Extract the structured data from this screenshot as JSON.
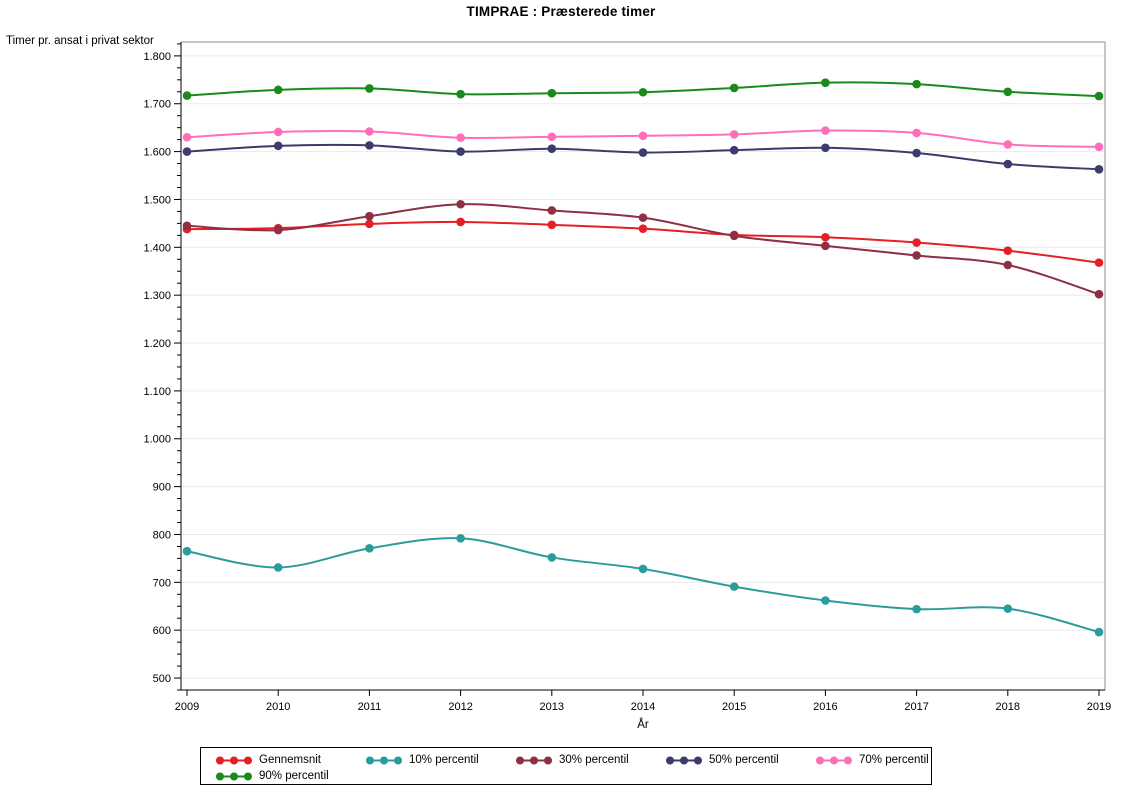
{
  "chart_data": {
    "type": "line",
    "title": "TIMPRAE : Præsterede timer",
    "xlabel": "År",
    "ylabel": "Timer pr. ansat i privat sektor",
    "x_labels": [
      "2009",
      "2010",
      "2011",
      "2012",
      "2013",
      "2014",
      "2015",
      "2016",
      "2017",
      "2018",
      "2019"
    ],
    "y_major_ticks": [
      500,
      600,
      700,
      800,
      900,
      1000,
      1100,
      1200,
      1300,
      1400,
      1500,
      1600,
      1700,
      1800
    ],
    "y_tick_labels": [
      "500",
      "600",
      "700",
      "800",
      "900",
      "1.000",
      "1.100",
      "1.200",
      "1.300",
      "1.400",
      "1.500",
      "1.600",
      "1.700",
      "1.800"
    ],
    "y_minor_step": 25,
    "ylim": [
      475,
      1829
    ],
    "grid": "horizontal-major-only",
    "legend_position": "bottom",
    "series": [
      {
        "name": "Gennemsnit",
        "color": "#E61E25",
        "values": [
          1438,
          1440,
          1449,
          1453,
          1447,
          1439,
          1426,
          1421,
          1410,
          1393,
          1368
        ]
      },
      {
        "name": "10% percentil",
        "color": "#2B9C9C",
        "values": [
          765,
          731,
          771,
          792,
          752,
          728,
          691,
          662,
          644,
          645,
          596
        ]
      },
      {
        "name": "30% percentil",
        "color": "#8E3044",
        "values": [
          1445,
          1436,
          1465,
          1490,
          1477,
          1462,
          1424,
          1403,
          1383,
          1363,
          1302
        ]
      },
      {
        "name": "50% percentil",
        "color": "#3B3B6D",
        "values": [
          1600,
          1612,
          1613,
          1600,
          1606,
          1598,
          1603,
          1608,
          1597,
          1574,
          1563
        ]
      },
      {
        "name": "70% percentil",
        "color": "#FF6FB7",
        "values": [
          1630,
          1641,
          1642,
          1629,
          1631,
          1633,
          1636,
          1644,
          1639,
          1615,
          1610
        ]
      },
      {
        "name": "90% percentil",
        "color": "#1A8A1A",
        "values": [
          1717,
          1729,
          1732,
          1720,
          1722,
          1724,
          1733,
          1744,
          1741,
          1725,
          1716
        ]
      }
    ],
    "style_colors": {
      "gridline": "#EAEAEA",
      "frame": "#8C8C8C",
      "axis": "#000000"
    }
  }
}
